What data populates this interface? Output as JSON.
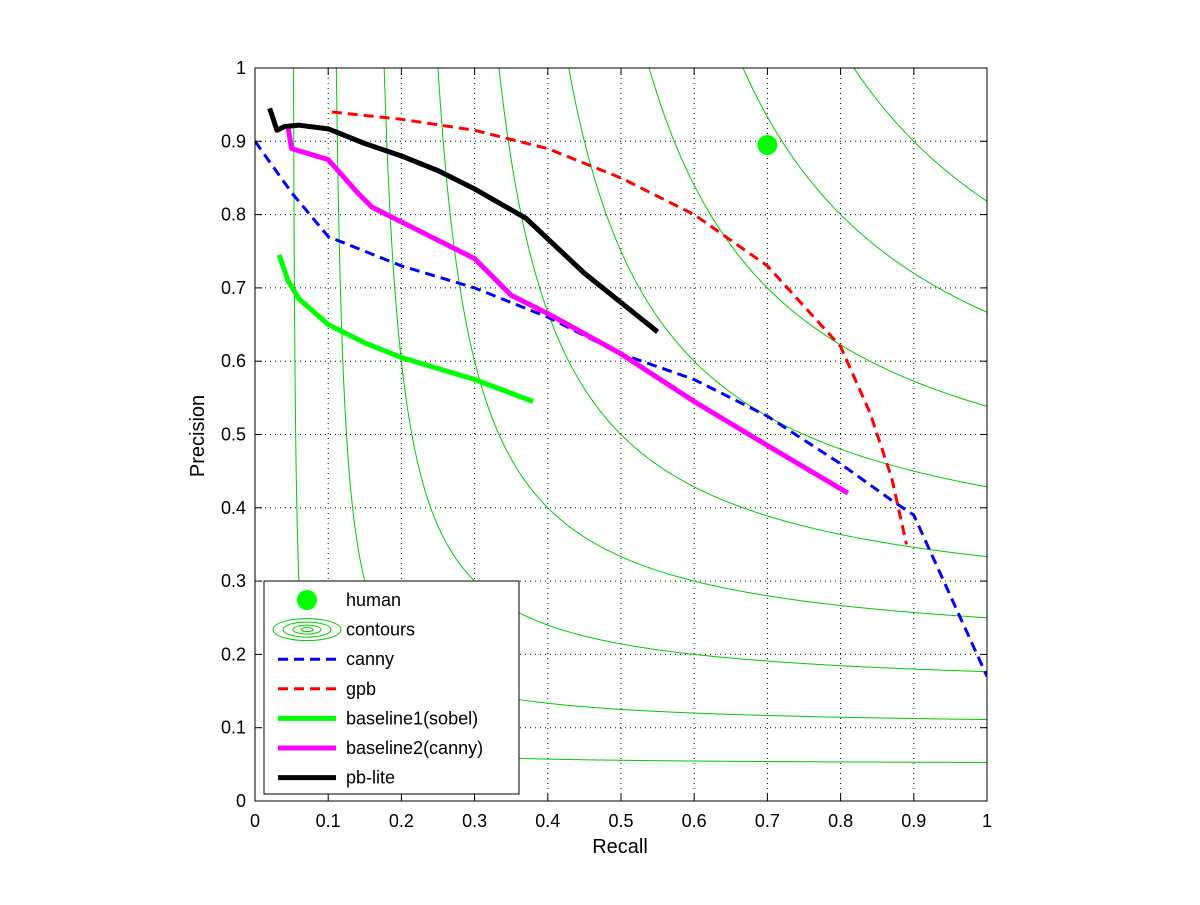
{
  "chart_data": {
    "type": "line",
    "title": "",
    "xlabel": "Recall",
    "ylabel": "Precision",
    "xlim": [
      0,
      1
    ],
    "ylim": [
      0,
      1
    ],
    "grid": true,
    "legend_position": "bottom-left",
    "xticks": [
      "0",
      "0.1",
      "0.2",
      "0.3",
      "0.4",
      "0.5",
      "0.6",
      "0.7",
      "0.8",
      "0.9",
      "1"
    ],
    "yticks": [
      "0",
      "0.1",
      "0.2",
      "0.3",
      "0.4",
      "0.5",
      "0.6",
      "0.7",
      "0.8",
      "0.9",
      "1"
    ],
    "contour_levels": [
      0.1,
      0.2,
      0.3,
      0.4,
      0.5,
      0.6,
      0.7,
      0.8,
      0.9
    ],
    "human": {
      "name": "human",
      "recall": 0.7,
      "precision": 0.895,
      "color": "#00ff00"
    },
    "contours": {
      "name": "contours",
      "color": "#00cc00"
    },
    "series": [
      {
        "name": "canny",
        "color": "#0000ff",
        "style": "dashed",
        "x": [
          0.0,
          0.05,
          0.1,
          0.15,
          0.2,
          0.3,
          0.4,
          0.5,
          0.6,
          0.7,
          0.8,
          0.87,
          0.9,
          0.95,
          1.0
        ],
        "y": [
          0.9,
          0.83,
          0.77,
          0.75,
          0.73,
          0.7,
          0.66,
          0.61,
          0.575,
          0.525,
          0.46,
          0.41,
          0.39,
          0.28,
          0.17
        ]
      },
      {
        "name": "gpb",
        "color": "#ff0000",
        "style": "dashed",
        "x": [
          0.105,
          0.2,
          0.3,
          0.4,
          0.5,
          0.6,
          0.7,
          0.8,
          0.84,
          0.87,
          0.89
        ],
        "y": [
          0.94,
          0.93,
          0.915,
          0.89,
          0.85,
          0.8,
          0.73,
          0.62,
          0.53,
          0.44,
          0.35
        ]
      },
      {
        "name": "baseline1(sobel)",
        "color": "#00ff00",
        "style": "solid",
        "x": [
          0.033,
          0.045,
          0.06,
          0.1,
          0.15,
          0.2,
          0.3,
          0.38
        ],
        "y": [
          0.745,
          0.71,
          0.685,
          0.65,
          0.625,
          0.605,
          0.575,
          0.545
        ]
      },
      {
        "name": "baseline2(canny)",
        "color": "#ff00ff",
        "style": "solid",
        "x": [
          0.045,
          0.05,
          0.1,
          0.14,
          0.16,
          0.2,
          0.3,
          0.35,
          0.4,
          0.5,
          0.6,
          0.7,
          0.81
        ],
        "y": [
          0.92,
          0.89,
          0.875,
          0.83,
          0.81,
          0.79,
          0.74,
          0.69,
          0.665,
          0.61,
          0.545,
          0.485,
          0.42
        ]
      },
      {
        "name": "pb-lite",
        "color": "#000000",
        "style": "solid",
        "x": [
          0.02,
          0.03,
          0.04,
          0.06,
          0.1,
          0.15,
          0.2,
          0.25,
          0.3,
          0.37,
          0.45,
          0.55
        ],
        "y": [
          0.945,
          0.915,
          0.92,
          0.922,
          0.917,
          0.897,
          0.88,
          0.86,
          0.835,
          0.795,
          0.72,
          0.64
        ]
      }
    ]
  }
}
